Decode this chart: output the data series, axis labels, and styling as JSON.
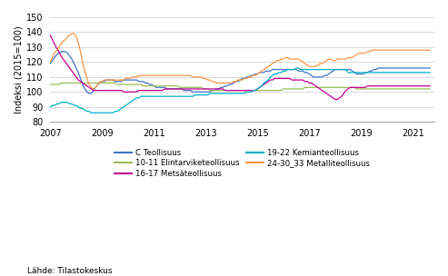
{
  "ylabel": "Indeksi (2015=100)",
  "source": "Lähde: Tilastokeskus",
  "ylim": [
    80,
    150
  ],
  "yticks": [
    80,
    90,
    100,
    110,
    120,
    130,
    140,
    150
  ],
  "colors": {
    "C_Teollisuus": "#4472C4",
    "Elintarvi": "#9BBB59",
    "Metsateollisuus": "#C0008F",
    "Kemian": "#00B0C8",
    "Metalli": "#F79646"
  },
  "legend_col1": [
    {
      "label": "C Teollisuus",
      "color": "#4472C4"
    },
    {
      "label": "16-17 Metsäteollisuus",
      "color": "#C0008F"
    },
    {
      "label": "24-30_33 Metalliteollisuus",
      "color": "#F79646"
    }
  ],
  "legend_col2": [
    {
      "label": "10-11 Elintarviketeollisuus",
      "color": "#9BBB59"
    },
    {
      "label": "19-22 Kemianteollisuus",
      "color": "#00B0C8"
    }
  ],
  "C_Teollisuus": [
    119,
    121,
    123,
    125,
    126,
    127,
    127,
    127,
    126,
    124,
    122,
    119,
    116,
    113,
    109,
    105,
    102,
    100,
    99,
    99,
    101,
    103,
    105,
    106,
    107,
    107,
    108,
    108,
    108,
    108,
    107,
    107,
    107,
    107,
    108,
    108,
    108,
    108,
    108,
    108,
    108,
    107,
    107,
    107,
    106,
    106,
    105,
    105,
    104,
    103,
    103,
    103,
    103,
    103,
    102,
    102,
    102,
    102,
    102,
    102,
    102,
    102,
    101,
    101,
    101,
    101,
    100,
    100,
    100,
    100,
    100,
    100,
    100,
    100,
    100,
    101,
    101,
    102,
    102,
    103,
    103,
    104,
    104,
    105,
    105,
    106,
    107,
    107,
    108,
    109,
    109,
    110,
    110,
    111,
    111,
    112,
    112,
    113,
    113,
    113,
    114,
    114,
    114,
    115,
    115,
    115,
    115,
    115,
    115,
    115,
    115,
    115,
    115,
    115,
    115,
    114,
    114,
    114,
    113,
    113,
    112,
    111,
    110,
    110,
    110,
    110,
    110,
    111,
    111,
    112,
    113,
    114,
    115,
    115,
    115,
    115,
    115,
    115,
    115,
    115,
    114,
    113,
    112,
    112,
    112,
    112,
    113,
    113,
    114,
    114,
    115,
    115,
    116
  ],
  "Elintarvi": [
    105,
    105,
    105,
    105,
    105,
    106,
    106,
    106,
    106,
    106,
    106,
    106,
    106,
    106,
    106,
    106,
    106,
    106,
    106,
    106,
    106,
    106,
    106,
    106,
    106,
    106,
    106,
    106,
    106,
    106,
    106,
    105,
    105,
    105,
    105,
    105,
    105,
    105,
    105,
    105,
    105,
    105,
    105,
    104,
    104,
    104,
    104,
    104,
    104,
    104,
    104,
    104,
    104,
    104,
    104,
    104,
    104,
    104,
    104,
    104,
    103,
    103,
    103,
    103,
    103,
    103,
    103,
    103,
    103,
    103,
    103,
    102,
    102,
    102,
    101,
    101,
    101,
    101,
    101,
    101,
    101,
    101,
    101,
    101,
    101,
    101,
    101,
    101,
    101,
    101,
    101,
    101,
    101,
    101,
    101,
    101,
    101,
    101,
    101,
    101,
    101,
    101,
    101,
    101,
    101,
    101,
    101,
    101,
    102,
    102,
    102,
    102,
    102,
    102,
    102,
    102,
    102,
    102,
    103,
    103,
    103,
    103,
    103,
    103,
    103,
    103,
    103,
    103,
    103,
    103,
    103,
    103,
    103,
    103,
    103,
    103,
    103,
    103,
    103,
    103,
    103,
    103,
    102,
    102,
    102,
    102,
    102,
    102,
    102,
    102,
    102,
    102,
    102
  ],
  "Metsateollisuus": [
    138,
    135,
    132,
    129,
    127,
    124,
    122,
    120,
    118,
    116,
    114,
    112,
    110,
    108,
    107,
    106,
    105,
    104,
    103,
    102,
    101,
    101,
    101,
    101,
    101,
    101,
    101,
    101,
    101,
    101,
    101,
    101,
    101,
    101,
    100,
    100,
    100,
    100,
    100,
    100,
    100,
    101,
    101,
    101,
    101,
    101,
    101,
    101,
    101,
    101,
    101,
    101,
    101,
    102,
    102,
    102,
    102,
    102,
    102,
    102,
    102,
    102,
    102,
    102,
    102,
    102,
    102,
    102,
    102,
    102,
    102,
    102,
    102,
    102,
    102,
    102,
    102,
    102,
    102,
    102,
    102,
    101,
    101,
    101,
    101,
    101,
    101,
    101,
    101,
    101,
    101,
    101,
    101,
    101,
    101,
    101,
    102,
    103,
    104,
    105,
    106,
    107,
    108,
    108,
    109,
    109,
    109,
    109,
    109,
    109,
    109,
    109,
    108,
    108,
    108,
    108,
    108,
    108,
    107,
    107,
    106,
    106,
    105,
    104,
    103,
    102,
    101,
    100,
    99,
    98,
    97,
    96,
    95,
    95,
    96,
    97,
    99,
    101,
    102,
    103,
    103,
    103,
    103,
    103,
    103,
    103,
    103,
    104,
    104,
    104,
    104,
    104,
    104
  ],
  "Kemian": [
    90,
    91,
    91,
    92,
    92,
    93,
    93,
    93,
    93,
    92,
    92,
    91,
    91,
    90,
    89,
    89,
    88,
    87,
    87,
    86,
    86,
    86,
    86,
    86,
    86,
    86,
    86,
    86,
    86,
    86,
    87,
    87,
    88,
    89,
    90,
    91,
    92,
    93,
    94,
    95,
    96,
    96,
    97,
    97,
    97,
    97,
    97,
    97,
    97,
    97,
    97,
    97,
    97,
    97,
    97,
    97,
    97,
    97,
    97,
    97,
    97,
    97,
    97,
    97,
    97,
    97,
    97,
    98,
    98,
    98,
    98,
    98,
    98,
    98,
    99,
    99,
    99,
    99,
    99,
    99,
    99,
    99,
    99,
    99,
    99,
    99,
    99,
    99,
    99,
    99,
    99,
    100,
    100,
    100,
    101,
    101,
    102,
    103,
    104,
    106,
    107,
    108,
    110,
    111,
    112,
    112,
    113,
    113,
    114,
    114,
    115,
    115,
    115,
    115,
    116,
    116,
    115,
    115,
    115,
    115,
    115,
    115,
    115,
    115,
    115,
    115,
    115,
    115,
    115,
    115,
    115,
    115,
    115,
    115,
    115,
    115,
    115,
    115,
    113,
    113,
    113,
    113,
    113,
    113,
    113,
    113,
    113,
    113,
    113,
    113,
    113,
    113,
    113
  ],
  "Metalli": [
    120,
    123,
    126,
    128,
    130,
    132,
    134,
    135,
    137,
    138,
    139,
    139,
    137,
    133,
    127,
    120,
    114,
    109,
    105,
    103,
    102,
    103,
    105,
    107,
    107,
    108,
    108,
    108,
    108,
    108,
    108,
    108,
    108,
    108,
    108,
    109,
    109,
    109,
    110,
    110,
    110,
    111,
    111,
    111,
    111,
    111,
    111,
    111,
    111,
    111,
    111,
    111,
    111,
    111,
    111,
    111,
    111,
    111,
    111,
    111,
    111,
    111,
    111,
    111,
    111,
    111,
    110,
    110,
    110,
    110,
    110,
    109,
    109,
    108,
    108,
    107,
    107,
    106,
    106,
    106,
    106,
    106,
    106,
    106,
    106,
    107,
    107,
    108,
    108,
    108,
    109,
    109,
    110,
    110,
    111,
    111,
    112,
    113,
    114,
    115,
    116,
    117,
    118,
    119,
    120,
    121,
    121,
    122,
    122,
    123,
    123,
    122,
    122,
    122,
    122,
    122,
    121,
    120,
    119,
    118,
    117,
    117,
    117,
    117,
    118,
    119,
    119,
    120,
    121,
    122,
    122,
    121,
    121,
    122,
    122,
    122,
    122,
    122,
    123,
    123,
    123,
    124,
    125,
    126,
    126,
    126,
    126,
    127,
    127,
    128,
    128,
    128,
    128
  ]
}
